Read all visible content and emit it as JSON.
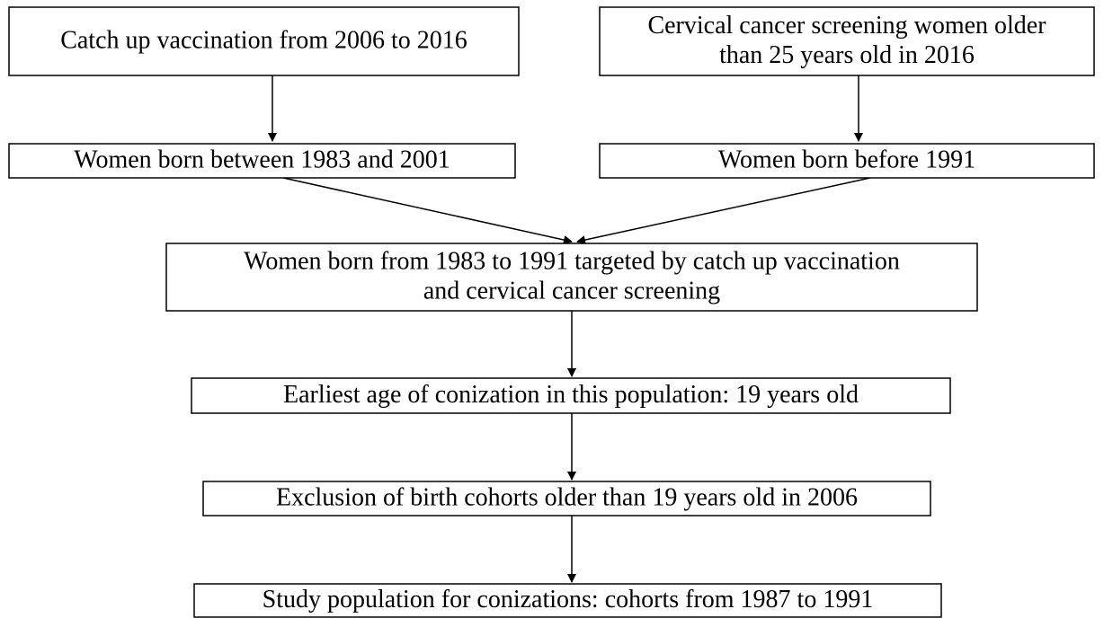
{
  "nodes": [
    {
      "lines": [
        "Catch up vaccination from 2006 to 2016"
      ]
    },
    {
      "lines": [
        "Cervical cancer screening women older",
        "than 25 years old in 2016"
      ]
    },
    {
      "lines": [
        "Women born between 1983 and 2001"
      ]
    },
    {
      "lines": [
        "Women born before 1991"
      ]
    },
    {
      "lines": [
        "Women born from 1983 to 1991 targeted by catch up vaccination",
        "and cervical cancer screening"
      ]
    },
    {
      "lines": [
        "Earliest age of conization in this population: 19 years old"
      ]
    },
    {
      "lines": [
        "Exclusion of birth cohorts older than 19 years old in 2006"
      ]
    },
    {
      "lines": [
        "Study population for conizations: cohorts from 1987 to 1991"
      ]
    }
  ]
}
